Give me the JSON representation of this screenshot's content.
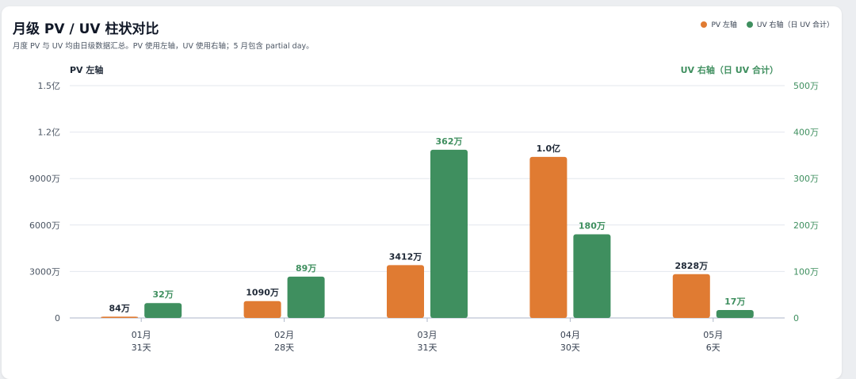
{
  "header": {
    "title": "月级 PV / UV 柱状对比",
    "subtitle": "月度 PV 与 UV 均由日级数据汇总。PV 使用左轴，UV 使用右轴；5 月包含 partial day。"
  },
  "colors": {
    "pv": "#e07b32",
    "uv": "#3f8f5f",
    "grid": "#e3e7ee",
    "baseline": "#aeb6c8"
  },
  "legend": [
    {
      "label": "PV 左轴",
      "color": "#e07b32"
    },
    {
      "label": "UV 右轴（日 UV 合计）",
      "color": "#3f8f5f"
    }
  ],
  "chart_data": {
    "type": "bar",
    "categories": [
      "01月",
      "02月",
      "03月",
      "04月",
      "05月"
    ],
    "category_sublabels": [
      "31天",
      "28天",
      "31天",
      "30天",
      "6天"
    ],
    "series": [
      {
        "name": "PV 左轴",
        "axis": "left",
        "values": [
          840000,
          10900000,
          34120000,
          104000000,
          28280000
        ],
        "labels": [
          "84万",
          "1090万",
          "3412万",
          "1.0亿",
          "2828万"
        ]
      },
      {
        "name": "UV 右轴（日 UV 合计）",
        "axis": "right",
        "values": [
          320000,
          890000,
          3620000,
          1800000,
          170000
        ],
        "labels": [
          "32万",
          "89万",
          "362万",
          "180万",
          "17万"
        ]
      }
    ],
    "y_left": {
      "label": "PV 左轴",
      "range": [
        0,
        150000000
      ],
      "ticks": [
        0,
        30000000,
        60000000,
        90000000,
        120000000,
        150000000
      ],
      "tick_labels": [
        "0",
        "3000万",
        "6000万",
        "9000万",
        "1.2亿",
        "1.5亿"
      ]
    },
    "y_right": {
      "label": "UV 右轴（日 UV 合计）",
      "range": [
        0,
        5000000
      ],
      "ticks": [
        0,
        1000000,
        2000000,
        3000000,
        4000000,
        5000000
      ],
      "tick_labels": [
        "0",
        "100万",
        "200万",
        "300万",
        "400万",
        "500万"
      ]
    },
    "grid": true,
    "legend_position": "top-right"
  }
}
